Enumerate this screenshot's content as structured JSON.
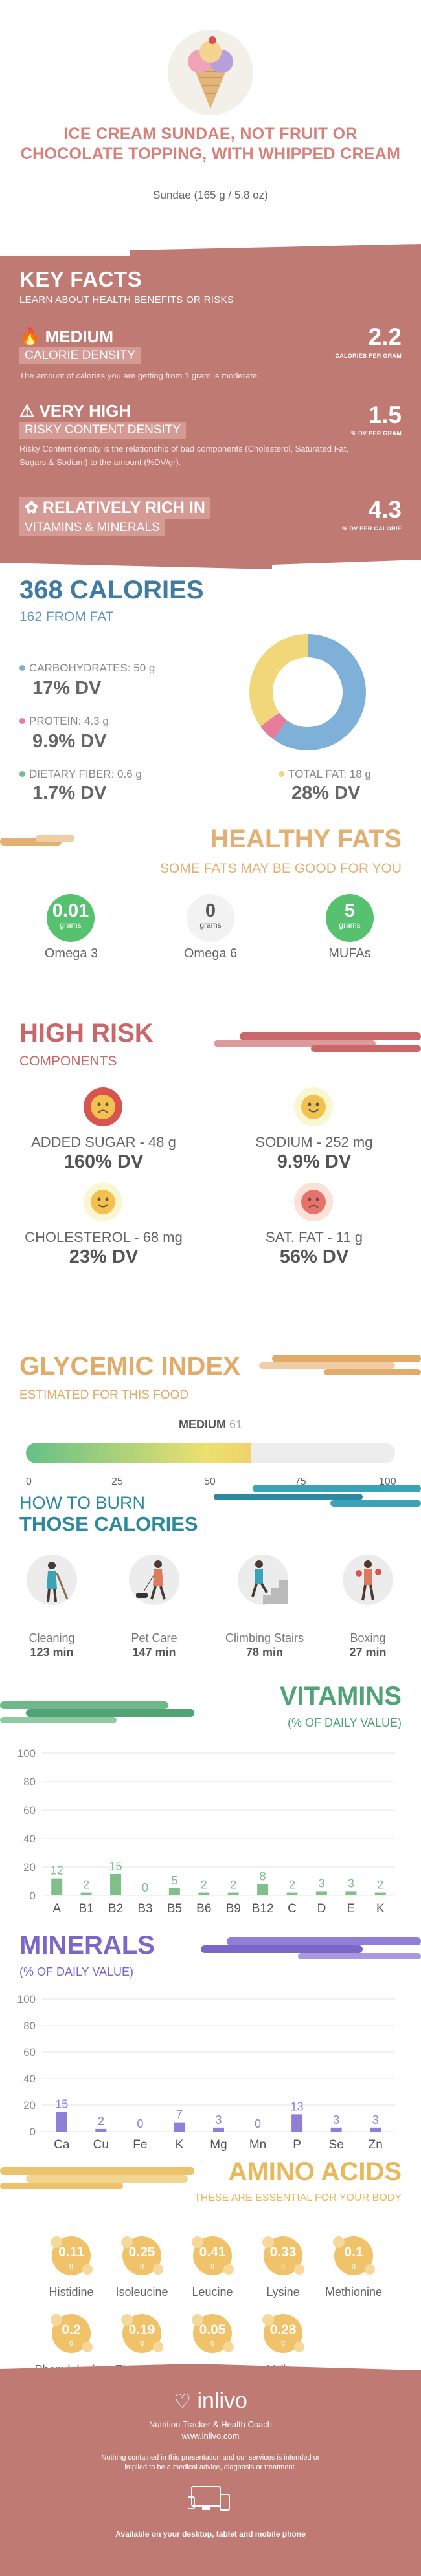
{
  "header": {
    "title": "ICE CREAM SUNDAE, NOT FRUIT OR CHOCOLATE TOPPING, WITH WHIPPED CREAM",
    "subtitle": "Sundae (165 g / 5.8 oz)",
    "image": "ice-cream-sundae-illustration"
  },
  "key_facts": {
    "title": "KEY FACTS",
    "subtitle": "LEARN ABOUT HEALTH BENEFITS OR RISKS",
    "facts": [
      {
        "icon": "flame-icon",
        "level": "MEDIUM",
        "name": "CALORIE DENSITY",
        "desc": "The amount of calories you are getting from 1 gram is moderate.",
        "value": "2.2",
        "unit": "CALORIES PER GRAM"
      },
      {
        "icon": "warning-icon",
        "level": "VERY HIGH",
        "name": "RISKY CONTENT DENSITY",
        "desc": "Risky Content density is the relationship of bad components (Cholesterol, Saturated Fat, Sugars & Sodium) to the amount (%DV/gr).",
        "value": "1.5",
        "unit": "% DV PER GRAM"
      },
      {
        "icon": "leaf-icon",
        "level": "RELATIVELY RICH  IN",
        "name": "VITAMINS & MINERALS",
        "desc": "",
        "value": "4.3",
        "unit": "% DV PER CALORIE"
      }
    ],
    "colors": {
      "bg": "#c07a74",
      "pill": "#d69a94"
    }
  },
  "calories": {
    "total": "368 CALORIES",
    "from_fat": "162 FROM FAT",
    "items": [
      {
        "label": "CARBOHYDRATES: 50 g",
        "dv": "17% DV",
        "color": "#7fb0d8"
      },
      {
        "label": "PROTEIN: 4.3 g",
        "dv": "9.9% DV",
        "color": "#e67b9a"
      },
      {
        "label": "DIETARY FIBER: 0.6 g",
        "dv": "1.7% DV",
        "color": "#6fbf8c"
      },
      {
        "label": "TOTAL FAT: 18 g",
        "dv": "28% DV",
        "color": "#f2d77a"
      }
    ],
    "donut_fractions": {
      "carbs": 0.6,
      "protein": 0.05,
      "fat": 0.35
    }
  },
  "healthy_fats": {
    "title": "HEALTHY FATS",
    "subtitle": "SOME FATS MAY BE GOOD FOR YOU",
    "fats": [
      {
        "value": "0.01",
        "unit": "grams",
        "label": "Omega 3",
        "color": "#56c26f"
      },
      {
        "value": "0",
        "unit": "grams",
        "label": "Omega 6",
        "color": "#f2f2f2"
      },
      {
        "value": "5",
        "unit": "grams",
        "label": "MUFAs",
        "color": "#56c26f"
      }
    ]
  },
  "high_risk": {
    "title": "HIGH RISK",
    "subtitle": "COMPONENTS",
    "items": [
      {
        "label": "ADDED SUGAR - 48 g",
        "dv": "160% DV",
        "face": "sad-face-icon"
      },
      {
        "label": "SODIUM - 252 mg",
        "dv": "9.9% DV",
        "face": "happy-face-icon"
      },
      {
        "label": "CHOLESTEROL - 68 mg",
        "dv": "23% DV",
        "face": "happy-face-icon"
      },
      {
        "label": "SAT. FAT - 11 g",
        "dv": "56% DV",
        "face": "sad-face-icon"
      }
    ]
  },
  "glycemic": {
    "title": "GLYCEMIC INDEX",
    "subtitle": "ESTIMATED FOR THIS FOOD",
    "level": "MEDIUM",
    "value": "61",
    "value_num": 61,
    "ticks": [
      "0",
      "25",
      "50",
      "75",
      "100"
    ]
  },
  "burn": {
    "title_line1": "HOW TO BURN",
    "title_line2": "THOSE CALORIES",
    "activities": [
      {
        "label": "Cleaning",
        "time": "123 min",
        "icon": "cleaning-person-icon"
      },
      {
        "label": "Pet Care",
        "time": "147 min",
        "icon": "walking-dog-icon"
      },
      {
        "label": "Climbing Stairs",
        "time": "78 min",
        "icon": "stairs-climber-icon"
      },
      {
        "label": "Boxing",
        "time": "27 min",
        "icon": "boxer-icon"
      }
    ]
  },
  "vitamins": {
    "title": "VITAMINS",
    "subtitle": "(% OF DAILY VALUE)",
    "chart_data": {
      "type": "bar",
      "categories": [
        "A",
        "B1",
        "B2",
        "B3",
        "B5",
        "B6",
        "B9",
        "B12",
        "C",
        "D",
        "E",
        "K"
      ],
      "values": [
        12,
        2,
        15,
        0,
        5,
        2,
        2,
        8,
        2,
        3,
        3,
        2
      ],
      "ylim": [
        0,
        100
      ],
      "yticks": [
        "0",
        "20",
        "40",
        "60",
        "80",
        "100"
      ],
      "color": "#7fc08a"
    }
  },
  "minerals": {
    "title": "MINERALS",
    "subtitle": "(% OF DAILY VALUE)",
    "chart_data": {
      "type": "bar",
      "categories": [
        "Ca",
        "Cu",
        "Fe",
        "K",
        "Mg",
        "Mn",
        "P",
        "Se",
        "Zn"
      ],
      "values": [
        15,
        2,
        0,
        7,
        3,
        0,
        13,
        3,
        3
      ],
      "ylim": [
        0,
        100
      ],
      "yticks": [
        "0",
        "20",
        "40",
        "60",
        "80",
        "100"
      ],
      "color": "#8f7fd6"
    }
  },
  "amino": {
    "title": "AMINO ACIDS",
    "subtitle": "THESE ARE ESSENTIAL FOR YOUR BODY",
    "unit": "g",
    "items": [
      {
        "value": "0.11",
        "label": "Histidine"
      },
      {
        "value": "0.25",
        "label": "Isoleucine"
      },
      {
        "value": "0.41",
        "label": "Leucine"
      },
      {
        "value": "0.33",
        "label": "Lysine"
      },
      {
        "value": "0.1",
        "label": "Methionine"
      },
      {
        "value": "0.2",
        "label": "Phenylalanine"
      },
      {
        "value": "0.19",
        "label": "Threonine"
      },
      {
        "value": "0.05",
        "label": "Tryptophan"
      },
      {
        "value": "0.28",
        "label": "Valine"
      }
    ]
  },
  "footer": {
    "brand": "inlivo",
    "tagline": "Nutrition Tracker & Health Coach",
    "url": "www.inlivo.com",
    "disclaimer": "Nothing contained in this presentation and our services is intended or implied to be a medical advice, diagnosis or treatment.",
    "available": "Available on your desktop, tablet and mobile phone"
  }
}
